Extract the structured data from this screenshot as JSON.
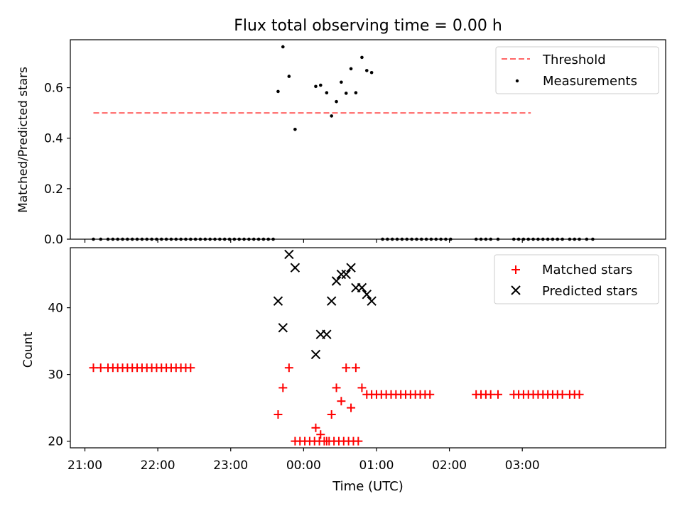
{
  "title": "Flux total observing time = 0.00 h",
  "x_axis": {
    "label": "Time (UTC)",
    "ticks": [
      "21:00",
      "22:00",
      "23:00",
      "00:00",
      "01:00",
      "02:00",
      "03:00"
    ]
  },
  "colors": {
    "threshold": "#ff6666",
    "measurements": "#000000",
    "matched": "#ff0000",
    "predicted": "#000000"
  },
  "chart_data": [
    {
      "type": "scatter",
      "ylabel": "Matched/Predicted stars",
      "xlim_minutes_after_2100": [
        -12,
        478
      ],
      "ylim": [
        0,
        0.79
      ],
      "yticks": [
        "0.0",
        "0.2",
        "0.4",
        "0.6"
      ],
      "threshold": {
        "name": "Threshold",
        "value": 0.5,
        "x_range_minutes": [
          7,
          367
        ]
      },
      "series": [
        {
          "name": "Measurements",
          "points": [
            [
              7,
              0
            ],
            [
              13,
              0
            ],
            [
              19,
              0
            ],
            [
              23,
              0
            ],
            [
              27,
              0
            ],
            [
              31,
              0
            ],
            [
              35,
              0
            ],
            [
              39,
              0
            ],
            [
              43,
              0
            ],
            [
              47,
              0
            ],
            [
              51,
              0
            ],
            [
              55,
              0
            ],
            [
              59,
              0
            ],
            [
              63,
              0
            ],
            [
              67,
              0
            ],
            [
              71,
              0
            ],
            [
              75,
              0
            ],
            [
              79,
              0
            ],
            [
              83,
              0
            ],
            [
              87,
              0
            ],
            [
              91,
              0
            ],
            [
              95,
              0
            ],
            [
              99,
              0
            ],
            [
              103,
              0
            ],
            [
              107,
              0
            ],
            [
              111,
              0
            ],
            [
              115,
              0
            ],
            [
              119,
              0
            ],
            [
              123,
              0
            ],
            [
              127,
              0
            ],
            [
              131,
              0
            ],
            [
              135,
              0
            ],
            [
              139,
              0
            ],
            [
              143,
              0
            ],
            [
              147,
              0
            ],
            [
              151,
              0
            ],
            [
              155,
              0
            ],
            [
              159,
              0.585
            ],
            [
              163,
              0.762
            ],
            [
              168,
              0.645
            ],
            [
              173,
              0.435
            ],
            [
              190,
              0.605
            ],
            [
              194,
              0.61
            ],
            [
              199,
              0.58
            ],
            [
              203,
              0.488
            ],
            [
              207,
              0.545
            ],
            [
              211,
              0.622
            ],
            [
              215,
              0.578
            ],
            [
              219,
              0.675
            ],
            [
              223,
              0.58
            ],
            [
              228,
              0.72
            ],
            [
              232,
              0.668
            ],
            [
              236,
              0.66
            ],
            [
              245,
              0
            ],
            [
              249,
              0
            ],
            [
              253,
              0
            ],
            [
              257,
              0
            ],
            [
              261,
              0
            ],
            [
              265,
              0
            ],
            [
              269,
              0
            ],
            [
              273,
              0
            ],
            [
              277,
              0
            ],
            [
              281,
              0
            ],
            [
              285,
              0
            ],
            [
              289,
              0
            ],
            [
              293,
              0
            ],
            [
              297,
              0
            ],
            [
              301,
              0
            ],
            [
              322,
              0
            ],
            [
              326,
              0
            ],
            [
              330,
              0
            ],
            [
              334,
              0
            ],
            [
              340,
              0
            ],
            [
              353,
              0
            ],
            [
              357,
              0
            ],
            [
              361,
              0
            ],
            [
              365,
              0
            ],
            [
              369,
              0
            ],
            [
              373,
              0
            ],
            [
              377,
              0
            ],
            [
              381,
              0
            ],
            [
              385,
              0
            ],
            [
              389,
              0
            ],
            [
              393,
              0
            ],
            [
              399,
              0
            ],
            [
              403,
              0
            ],
            [
              407,
              0
            ],
            [
              413,
              0
            ],
            [
              418,
              0
            ]
          ]
        }
      ],
      "legend": [
        "Threshold",
        "Measurements"
      ],
      "legend_position": "top-right"
    },
    {
      "type": "scatter",
      "ylabel": "Count",
      "xlim_minutes_after_2100": [
        -12,
        478
      ],
      "ylim": [
        19,
        49
      ],
      "yticks": [
        "20",
        "30",
        "40"
      ],
      "series": [
        {
          "name": "Matched stars",
          "marker": "+",
          "points": [
            [
              7,
              31
            ],
            [
              13,
              31
            ],
            [
              19,
              31
            ],
            [
              23,
              31
            ],
            [
              27,
              31
            ],
            [
              31,
              31
            ],
            [
              35,
              31
            ],
            [
              39,
              31
            ],
            [
              43,
              31
            ],
            [
              47,
              31
            ],
            [
              51,
              31
            ],
            [
              55,
              31
            ],
            [
              59,
              31
            ],
            [
              63,
              31
            ],
            [
              67,
              31
            ],
            [
              71,
              31
            ],
            [
              75,
              31
            ],
            [
              79,
              31
            ],
            [
              83,
              31
            ],
            [
              87,
              31
            ],
            [
              159,
              24
            ],
            [
              163,
              28
            ],
            [
              168,
              31
            ],
            [
              173,
              20
            ],
            [
              177,
              20
            ],
            [
              181,
              20
            ],
            [
              185,
              20
            ],
            [
              189,
              20
            ],
            [
              193,
              20
            ],
            [
              197,
              20
            ],
            [
              201,
              20
            ],
            [
              205,
              20
            ],
            [
              209,
              20
            ],
            [
              213,
              20
            ],
            [
              217,
              20
            ],
            [
              221,
              20
            ],
            [
              225,
              20
            ],
            [
              190,
              22
            ],
            [
              194,
              21
            ],
            [
              199,
              20
            ],
            [
              203,
              24
            ],
            [
              207,
              28
            ],
            [
              211,
              26
            ],
            [
              215,
              31
            ],
            [
              219,
              25
            ],
            [
              223,
              31
            ],
            [
              228,
              28
            ],
            [
              232,
              27
            ],
            [
              236,
              27
            ],
            [
              240,
              27
            ],
            [
              244,
              27
            ],
            [
              248,
              27
            ],
            [
              252,
              27
            ],
            [
              256,
              27
            ],
            [
              260,
              27
            ],
            [
              264,
              27
            ],
            [
              268,
              27
            ],
            [
              272,
              27
            ],
            [
              276,
              27
            ],
            [
              280,
              27
            ],
            [
              284,
              27
            ],
            [
              322,
              27
            ],
            [
              326,
              27
            ],
            [
              330,
              27
            ],
            [
              334,
              27
            ],
            [
              340,
              27
            ],
            [
              353,
              27
            ],
            [
              357,
              27
            ],
            [
              361,
              27
            ],
            [
              365,
              27
            ],
            [
              369,
              27
            ],
            [
              373,
              27
            ],
            [
              377,
              27
            ],
            [
              381,
              27
            ],
            [
              385,
              27
            ],
            [
              389,
              27
            ],
            [
              393,
              27
            ],
            [
              399,
              27
            ],
            [
              403,
              27
            ],
            [
              407,
              27
            ]
          ]
        },
        {
          "name": "Predicted stars",
          "marker": "x",
          "points": [
            [
              159,
              41
            ],
            [
              163,
              37
            ],
            [
              168,
              48
            ],
            [
              173,
              46
            ],
            [
              190,
              33
            ],
            [
              194,
              36
            ],
            [
              199,
              36
            ],
            [
              203,
              41
            ],
            [
              207,
              44
            ],
            [
              211,
              45
            ],
            [
              215,
              45
            ],
            [
              219,
              46
            ],
            [
              223,
              43
            ],
            [
              228,
              43
            ],
            [
              232,
              42
            ],
            [
              236,
              41
            ]
          ]
        }
      ],
      "legend": [
        "Matched stars",
        "Predicted stars"
      ],
      "legend_position": "top-right"
    }
  ]
}
